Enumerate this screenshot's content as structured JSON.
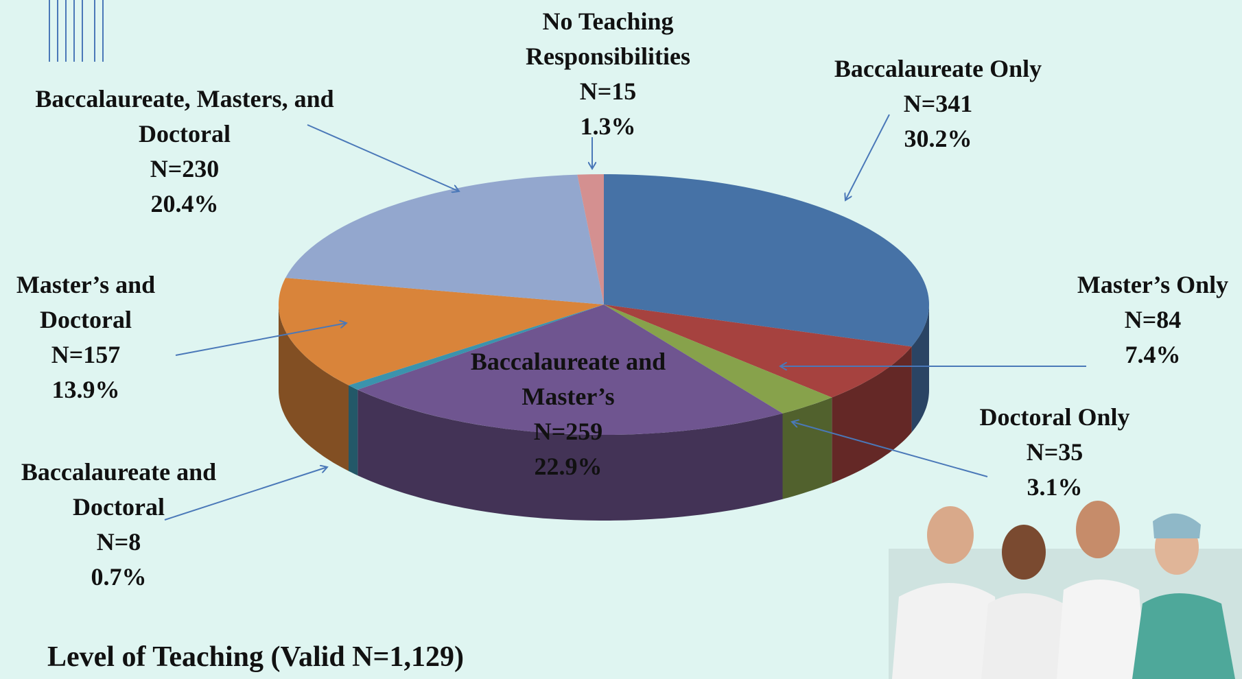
{
  "chart_data": {
    "type": "pie3d",
    "title": "Level of Teaching (Valid N=1,129)",
    "categories": [
      "Baccalaureate Only",
      "Master’s Only",
      "Doctoral Only",
      "Baccalaureate and Master’s",
      "Baccalaureate and Doctoral",
      "Master’s and Doctoral",
      "Baccalaureate, Masters, and Doctoral",
      "No Teaching Responsibilities"
    ],
    "n_labels": [
      "N=341",
      "N=84",
      "N=35",
      "N=259",
      "N=8",
      "N=157",
      "N=230",
      "N=15"
    ],
    "values": [
      30.2,
      7.4,
      3.1,
      22.9,
      0.7,
      13.9,
      20.4,
      1.3
    ],
    "value_labels": [
      "30.2%",
      "7.4%",
      "3.1%",
      "22.9%",
      "0.7%",
      "13.9%",
      "20.4%",
      "1.3%"
    ],
    "colors": [
      "#4672a6",
      "#a6423f",
      "#87a24b",
      "#6f5590",
      "#3b93ad",
      "#d9843a",
      "#93a7ce",
      "#d49090"
    ]
  }
}
